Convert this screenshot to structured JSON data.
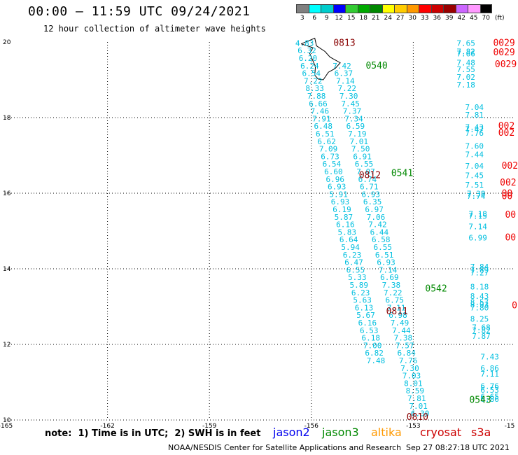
{
  "header": {
    "title": "00:00 — 11:59 UTC 09/24/2021",
    "subtitle": "12 hour collection of altimeter wave heights"
  },
  "legend_scale": {
    "unit": "(ft)",
    "labels": [
      "3",
      "6",
      "9",
      "12",
      "15",
      "18",
      "21",
      "24",
      "27",
      "30",
      "33",
      "36",
      "39",
      "42",
      "45",
      "70"
    ],
    "colors": [
      "#808080",
      "#00ffff",
      "#00cccc",
      "#0000ff",
      "#33cc33",
      "#00aa00",
      "#008800",
      "#ffff00",
      "#ffcc00",
      "#ff9900",
      "#ff0000",
      "#cc0000",
      "#990000",
      "#cc66ff",
      "#ff99ff",
      "#000000"
    ]
  },
  "axes": {
    "x_labels": [
      "-165",
      "-162",
      "-159",
      "-156",
      "-153",
      "-15"
    ],
    "y_labels": [
      "20",
      "18",
      "16",
      "14",
      "12",
      "10"
    ]
  },
  "colors": {
    "jason2": "#0000ee",
    "jason3": "#008800",
    "altika": "#ff9900",
    "cryosat": "#cc0000",
    "s3a": "#cc0000",
    "wave_value": "#00bfdf",
    "pass_green": "#008800",
    "pass_dark_red": "#880000",
    "pass_red": "#ee0000",
    "grid": "#000000"
  },
  "map_points": {
    "track_a": [
      {
        "v": "4.83",
        "lon": -156.2,
        "lat": 19.9
      },
      {
        "v": "6.32",
        "lon": -156.13,
        "lat": 19.7
      },
      {
        "v": "6.20",
        "lon": -156.1,
        "lat": 19.5
      },
      {
        "v": "6.24",
        "lon": -156.05,
        "lat": 19.3
      },
      {
        "v": "6.54",
        "lon": -156.0,
        "lat": 19.1
      },
      {
        "v": "7.22",
        "lon": -155.95,
        "lat": 18.9
      },
      {
        "v": "8.33",
        "lon": -155.9,
        "lat": 18.7
      },
      {
        "v": "7.88",
        "lon": -155.85,
        "lat": 18.5
      },
      {
        "v": "6.66",
        "lon": -155.8,
        "lat": 18.3
      },
      {
        "v": "7.46",
        "lon": -155.75,
        "lat": 18.1
      },
      {
        "v": "7.91",
        "lon": -155.7,
        "lat": 17.9
      },
      {
        "v": "6.48",
        "lon": -155.65,
        "lat": 17.7
      },
      {
        "v": "6.51",
        "lon": -155.6,
        "lat": 17.5
      },
      {
        "v": "6.62",
        "lon": -155.55,
        "lat": 17.3
      },
      {
        "v": "7.09",
        "lon": -155.5,
        "lat": 17.1
      },
      {
        "v": "6.73",
        "lon": -155.45,
        "lat": 16.9
      },
      {
        "v": "6.54",
        "lon": -155.4,
        "lat": 16.7
      },
      {
        "v": "6.60",
        "lon": -155.35,
        "lat": 16.5
      },
      {
        "v": "6.96",
        "lon": -155.3,
        "lat": 16.3
      },
      {
        "v": "6.93",
        "lon": -155.25,
        "lat": 16.1
      },
      {
        "v": "5.91",
        "lon": -155.2,
        "lat": 15.9
      },
      {
        "v": "6.93",
        "lon": -155.15,
        "lat": 15.7
      },
      {
        "v": "6.19",
        "lon": -155.1,
        "lat": 15.5
      },
      {
        "v": "5.87",
        "lon": -155.05,
        "lat": 15.3
      },
      {
        "v": "6.16",
        "lon": -155.0,
        "lat": 15.1
      },
      {
        "v": "5.83",
        "lon": -154.95,
        "lat": 14.9
      },
      {
        "v": "6.64",
        "lon": -154.9,
        "lat": 14.7
      },
      {
        "v": "5.94",
        "lon": -154.85,
        "lat": 14.5
      },
      {
        "v": "6.23",
        "lon": -154.8,
        "lat": 14.3
      },
      {
        "v": "6.47",
        "lon": -154.75,
        "lat": 14.1
      },
      {
        "v": "6.55",
        "lon": -154.7,
        "lat": 13.9
      },
      {
        "v": "5.33",
        "lon": -154.65,
        "lat": 13.7
      },
      {
        "v": "5.89",
        "lon": -154.6,
        "lat": 13.5
      },
      {
        "v": "6.23",
        "lon": -154.55,
        "lat": 13.3
      },
      {
        "v": "5.63",
        "lon": -154.5,
        "lat": 13.1
      },
      {
        "v": "6.13",
        "lon": -154.45,
        "lat": 12.9
      },
      {
        "v": "5.67",
        "lon": -154.4,
        "lat": 12.7
      },
      {
        "v": "6.16",
        "lon": -154.35,
        "lat": 12.5
      },
      {
        "v": "6.53",
        "lon": -154.3,
        "lat": 12.3
      },
      {
        "v": "6.18",
        "lon": -154.25,
        "lat": 12.1
      },
      {
        "v": "7.00",
        "lon": -154.2,
        "lat": 11.9
      },
      {
        "v": "6.82",
        "lon": -154.15,
        "lat": 11.7
      },
      {
        "v": "7.48",
        "lon": -154.1,
        "lat": 11.5
      }
    ],
    "track_b": [
      {
        "v": "7.42",
        "lon": -155.1,
        "lat": 19.3
      },
      {
        "v": "6.37",
        "lon": -155.05,
        "lat": 19.1
      },
      {
        "v": "7.14",
        "lon": -155.0,
        "lat": 18.9
      },
      {
        "v": "7.22",
        "lon": -154.95,
        "lat": 18.7
      },
      {
        "v": "7.30",
        "lon": -154.9,
        "lat": 18.5
      },
      {
        "v": "7.45",
        "lon": -154.85,
        "lat": 18.3
      },
      {
        "v": "7.37",
        "lon": -154.8,
        "lat": 18.1
      },
      {
        "v": "7.34",
        "lon": -154.75,
        "lat": 17.9
      },
      {
        "v": "6.59",
        "lon": -154.7,
        "lat": 17.7
      },
      {
        "v": "7.19",
        "lon": -154.65,
        "lat": 17.5
      },
      {
        "v": "7.01",
        "lon": -154.6,
        "lat": 17.3
      },
      {
        "v": "7.50",
        "lon": -154.55,
        "lat": 17.1
      },
      {
        "v": "6.91",
        "lon": -154.5,
        "lat": 16.9
      },
      {
        "v": "6.55",
        "lon": -154.45,
        "lat": 16.7
      },
      {
        "v": "7.07",
        "lon": -154.4,
        "lat": 16.5
      },
      {
        "v": "6.74",
        "lon": -154.35,
        "lat": 16.3
      },
      {
        "v": "6.71",
        "lon": -154.3,
        "lat": 16.1
      },
      {
        "v": "6.93",
        "lon": -154.25,
        "lat": 15.9
      },
      {
        "v": "6.35",
        "lon": -154.2,
        "lat": 15.7
      },
      {
        "v": "6.97",
        "lon": -154.15,
        "lat": 15.5
      },
      {
        "v": "7.06",
        "lon": -154.1,
        "lat": 15.3
      },
      {
        "v": "7.42",
        "lon": -154.05,
        "lat": 15.1
      },
      {
        "v": "6.44",
        "lon": -154.0,
        "lat": 14.9
      },
      {
        "v": "6.58",
        "lon": -153.95,
        "lat": 14.7
      },
      {
        "v": "6.55",
        "lon": -153.9,
        "lat": 14.5
      },
      {
        "v": "6.51",
        "lon": -153.85,
        "lat": 14.3
      },
      {
        "v": "6.93",
        "lon": -153.8,
        "lat": 14.1
      },
      {
        "v": "7.14",
        "lon": -153.75,
        "lat": 13.9
      },
      {
        "v": "6.69",
        "lon": -153.7,
        "lat": 13.7
      },
      {
        "v": "7.38",
        "lon": -153.65,
        "lat": 13.5
      },
      {
        "v": "7.22",
        "lon": -153.6,
        "lat": 13.3
      },
      {
        "v": "6.75",
        "lon": -153.55,
        "lat": 13.1
      },
      {
        "v": "7.11",
        "lon": -153.5,
        "lat": 12.9
      },
      {
        "v": "6.98",
        "lon": -153.45,
        "lat": 12.7
      },
      {
        "v": "7.49",
        "lon": -153.4,
        "lat": 12.5
      },
      {
        "v": "7.44",
        "lon": -153.35,
        "lat": 12.3
      },
      {
        "v": "7.38",
        "lon": -153.3,
        "lat": 12.1
      },
      {
        "v": "7.57",
        "lon": -153.25,
        "lat": 11.9
      },
      {
        "v": "6.84",
        "lon": -153.2,
        "lat": 11.7
      },
      {
        "v": "7.76",
        "lon": -153.15,
        "lat": 11.5
      },
      {
        "v": "7.30",
        "lon": -153.1,
        "lat": 11.3
      },
      {
        "v": "7.03",
        "lon": -153.05,
        "lat": 11.1
      },
      {
        "v": "8.01",
        "lon": -153.0,
        "lat": 10.9
      },
      {
        "v": "8.59",
        "lon": -152.95,
        "lat": 10.7
      },
      {
        "v": "7.81",
        "lon": -152.9,
        "lat": 10.5
      },
      {
        "v": "7.01",
        "lon": -152.85,
        "lat": 10.3
      },
      {
        "v": "6.30",
        "lon": -152.8,
        "lat": 10.1
      }
    ],
    "track_c": [
      {
        "v": "7.65",
        "lon": -151.45,
        "lat": 19.9
      },
      {
        "v": "7.82",
        "lon": -151.45,
        "lat": 19.68
      },
      {
        "v": "7.66",
        "lon": -151.45,
        "lat": 19.62
      },
      {
        "v": "7.48",
        "lon": -151.45,
        "lat": 19.38
      },
      {
        "v": "7.55",
        "lon": -151.45,
        "lat": 19.2
      },
      {
        "v": "7.02",
        "lon": -151.45,
        "lat": 19.0
      },
      {
        "v": "7.18",
        "lon": -151.45,
        "lat": 18.8
      },
      {
        "v": "7.04",
        "lon": -151.2,
        "lat": 18.2
      },
      {
        "v": "7.81",
        "lon": -151.2,
        "lat": 18.0
      },
      {
        "v": "7.43",
        "lon": -151.2,
        "lat": 17.68
      },
      {
        "v": "7.47",
        "lon": -151.2,
        "lat": 17.62
      },
      {
        "v": "7.76",
        "lon": -151.2,
        "lat": 17.52
      },
      {
        "v": "7.60",
        "lon": -151.2,
        "lat": 17.18
      },
      {
        "v": "7.44",
        "lon": -151.2,
        "lat": 16.95
      },
      {
        "v": "7.04",
        "lon": -151.2,
        "lat": 16.65
      },
      {
        "v": "7.45",
        "lon": -151.2,
        "lat": 16.4
      },
      {
        "v": "7.51",
        "lon": -151.2,
        "lat": 16.15
      },
      {
        "v": "7.38",
        "lon": -151.15,
        "lat": 15.92
      },
      {
        "v": "7.74",
        "lon": -151.15,
        "lat": 15.85
      },
      {
        "v": "7.18",
        "lon": -151.1,
        "lat": 15.38
      },
      {
        "v": "7.15",
        "lon": -151.1,
        "lat": 15.32
      },
      {
        "v": "7.14",
        "lon": -151.1,
        "lat": 15.05
      },
      {
        "v": "6.99",
        "lon": -151.1,
        "lat": 14.75
      },
      {
        "v": "7.84",
        "lon": -151.05,
        "lat": 13.98
      },
      {
        "v": "7.89",
        "lon": -151.05,
        "lat": 13.9
      },
      {
        "v": "7.27",
        "lon": -151.05,
        "lat": 13.82
      },
      {
        "v": "8.18",
        "lon": -151.05,
        "lat": 13.45
      },
      {
        "v": "8.43",
        "lon": -151.05,
        "lat": 13.2
      },
      {
        "v": "8.57",
        "lon": -151.05,
        "lat": 13.05
      },
      {
        "v": "8.93",
        "lon": -151.05,
        "lat": 12.98
      },
      {
        "v": "7.80",
        "lon": -151.05,
        "lat": 12.9
      },
      {
        "v": "8.25",
        "lon": -151.05,
        "lat": 12.6
      },
      {
        "v": "7.68",
        "lon": -151.0,
        "lat": 12.38
      },
      {
        "v": "7.82",
        "lon": -151.0,
        "lat": 12.3
      },
      {
        "v": "7.87",
        "lon": -151.0,
        "lat": 12.15
      },
      {
        "v": "7.43",
        "lon": -150.75,
        "lat": 11.6
      },
      {
        "v": "6.86",
        "lon": -150.75,
        "lat": 11.3
      },
      {
        "v": "7.11",
        "lon": -150.75,
        "lat": 11.15
      },
      {
        "v": "6.76",
        "lon": -150.75,
        "lat": 10.82
      },
      {
        "v": "6.53",
        "lon": -150.75,
        "lat": 10.72
      },
      {
        "v": "6.65",
        "lon": -150.75,
        "lat": 10.55
      },
      {
        "v": "6.86",
        "lon": -150.75,
        "lat": 10.48
      }
    ],
    "pass_labels": [
      {
        "t": "0813",
        "lon": -155.35,
        "lat": 19.9,
        "c": "dark_red"
      },
      {
        "t": "0540",
        "lon": -154.4,
        "lat": 19.3,
        "c": "green"
      },
      {
        "t": "0812",
        "lon": -154.6,
        "lat": 16.4,
        "c": "dark_red"
      },
      {
        "t": "0541",
        "lon": -153.65,
        "lat": 16.45,
        "c": "green"
      },
      {
        "t": "0542",
        "lon": -152.65,
        "lat": 13.4,
        "c": "green"
      },
      {
        "t": "0811",
        "lon": -153.8,
        "lat": 12.8,
        "c": "dark_red"
      },
      {
        "t": "0543",
        "lon": -151.35,
        "lat": 10.45,
        "c": "green"
      },
      {
        "t": "0810",
        "lon": -153.2,
        "lat": 10.0,
        "c": "dark_red"
      },
      {
        "t": "0029",
        "lon": -150.65,
        "lat": 19.9,
        "c": "red"
      },
      {
        "t": "0029",
        "lon": -150.65,
        "lat": 19.65,
        "c": "red"
      },
      {
        "t": "0029",
        "lon": -150.6,
        "lat": 19.33,
        "c": "red"
      },
      {
        "t": "002",
        "lon": -150.5,
        "lat": 17.7,
        "c": "red"
      },
      {
        "t": "002",
        "lon": -150.5,
        "lat": 17.52,
        "c": "red"
      },
      {
        "t": "002",
        "lon": -150.4,
        "lat": 16.65,
        "c": "red"
      },
      {
        "t": "002",
        "lon": -150.45,
        "lat": 16.2,
        "c": "red"
      },
      {
        "t": "00",
        "lon": -150.4,
        "lat": 15.92,
        "c": "red"
      },
      {
        "t": "00",
        "lon": -150.4,
        "lat": 15.84,
        "c": "red"
      },
      {
        "t": "00",
        "lon": -150.3,
        "lat": 15.35,
        "c": "red"
      },
      {
        "t": "00",
        "lon": -150.3,
        "lat": 14.75,
        "c": "red"
      },
      {
        "t": "0",
        "lon": -150.1,
        "lat": 12.95,
        "c": "red"
      }
    ],
    "coastline": [
      [
        -156.3,
        19.95
      ],
      [
        -155.9,
        20.1
      ],
      [
        -155.85,
        19.9
      ],
      [
        -155.6,
        19.75
      ],
      [
        -155.45,
        19.6
      ],
      [
        -155.15,
        19.45
      ],
      [
        -155.3,
        19.3
      ],
      [
        -155.5,
        19.2
      ],
      [
        -155.65,
        19.0
      ],
      [
        -155.8,
        19.02
      ],
      [
        -155.9,
        19.12
      ],
      [
        -155.88,
        19.35
      ],
      [
        -156.05,
        19.7
      ],
      [
        -155.95,
        19.85
      ],
      [
        -156.3,
        19.95
      ]
    ]
  },
  "footer": {
    "note": "note:  1) Time is in UTC;  2) SWH is in feet",
    "jason2": "jason2",
    "jason3": "jason3",
    "altika": "altika",
    "cryosat": "cryosat",
    "s3a": "s3a",
    "credit": "NOAA/NESDIS Center for Satellite Applications and Research",
    "timestamp": "Sep 27 08:27:18 UTC 2021"
  }
}
